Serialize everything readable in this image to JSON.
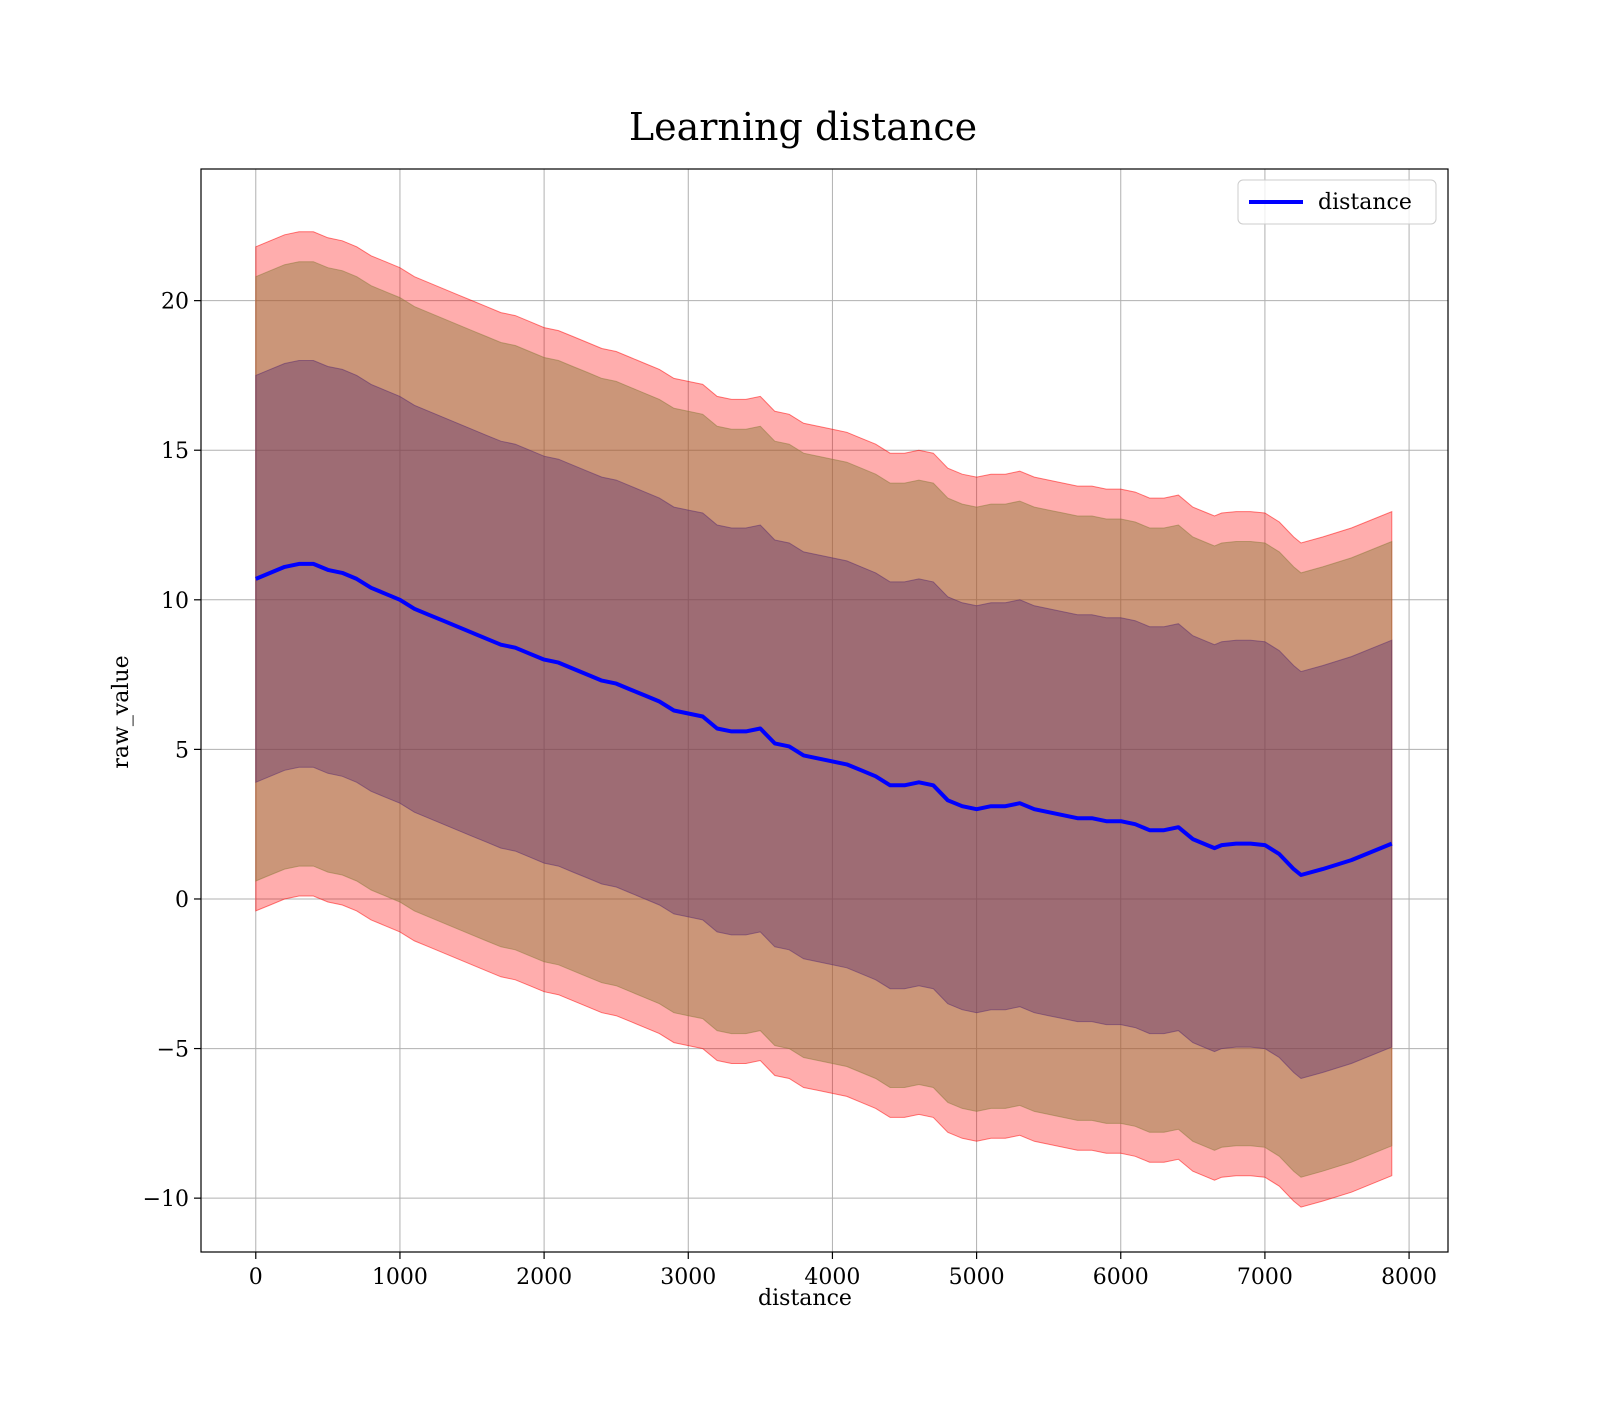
{
  "chart_data": {
    "type": "line",
    "title": "Learning distance",
    "xlabel": "distance",
    "ylabel": "raw_value",
    "xlim": [
      -380,
      8270
    ],
    "ylim": [
      -11.8,
      24.4
    ],
    "xticks": [
      0,
      1000,
      2000,
      3000,
      4000,
      5000,
      6000,
      7000,
      8000
    ],
    "xtick_labels": [
      "0",
      "1000",
      "2000",
      "3000",
      "4000",
      "5000",
      "6000",
      "7000",
      "8000"
    ],
    "yticks": [
      -10,
      -5,
      0,
      5,
      10,
      15,
      20
    ],
    "ytick_labels": [
      "−10",
      "−5",
      "0",
      "5",
      "10",
      "15",
      "20"
    ],
    "grid": true,
    "legend_position": "top-right",
    "series": [
      {
        "name": "distance",
        "color": "#0000ff",
        "x": [
          0,
          100,
          200,
          300,
          400,
          500,
          600,
          700,
          800,
          900,
          1000,
          1100,
          1200,
          1300,
          1400,
          1500,
          1600,
          1700,
          1800,
          1900,
          2000,
          2100,
          2200,
          2300,
          2400,
          2500,
          2600,
          2700,
          2800,
          2900,
          3000,
          3100,
          3200,
          3300,
          3400,
          3500,
          3600,
          3700,
          3800,
          3900,
          4000,
          4100,
          4200,
          4300,
          4400,
          4500,
          4600,
          4700,
          4800,
          4900,
          5000,
          5100,
          5200,
          5300,
          5400,
          5500,
          5600,
          5700,
          5800,
          5900,
          6000,
          6100,
          6200,
          6300,
          6400,
          6500,
          6600,
          6650,
          6700,
          6800,
          6900,
          7000,
          7100,
          7200,
          7250,
          7400,
          7600,
          7880
        ],
        "y": [
          10.7,
          10.9,
          11.1,
          11.2,
          11.2,
          11.0,
          10.9,
          10.7,
          10.4,
          10.2,
          10.0,
          9.7,
          9.5,
          9.3,
          9.1,
          8.9,
          8.7,
          8.5,
          8.4,
          8.2,
          8.0,
          7.9,
          7.7,
          7.5,
          7.3,
          7.2,
          7.0,
          6.8,
          6.6,
          6.3,
          6.2,
          6.1,
          5.7,
          5.6,
          5.6,
          5.7,
          5.2,
          5.1,
          4.8,
          4.7,
          4.6,
          4.5,
          4.3,
          4.1,
          3.8,
          3.8,
          3.9,
          3.8,
          3.3,
          3.1,
          3.0,
          3.1,
          3.1,
          3.2,
          3.0,
          2.9,
          2.8,
          2.7,
          2.7,
          2.6,
          2.6,
          2.5,
          2.3,
          2.3,
          2.4,
          2.0,
          1.8,
          1.7,
          1.8,
          1.85,
          1.85,
          1.8,
          1.5,
          1.0,
          0.8,
          1.0,
          1.3,
          1.85
        ]
      }
    ],
    "bands": [
      {
        "color": "#ff0000",
        "opacity": 0.32,
        "x": [
          0,
          100,
          200,
          300,
          400,
          500,
          600,
          700,
          800,
          900,
          1000,
          1100,
          1200,
          1300,
          1400,
          1500,
          1600,
          1700,
          1800,
          1900,
          2000,
          2100,
          2200,
          2300,
          2400,
          2500,
          2600,
          2700,
          2800,
          2900,
          3000,
          3100,
          3200,
          3300,
          3400,
          3500,
          3600,
          3700,
          3800,
          3900,
          4000,
          4100,
          4200,
          4300,
          4400,
          4500,
          4600,
          4700,
          4800,
          4900,
          5000,
          5100,
          5200,
          5300,
          5400,
          5500,
          5600,
          5700,
          5800,
          5900,
          6000,
          6100,
          6200,
          6300,
          6400,
          6500,
          6600,
          6650,
          6700,
          6800,
          6900,
          7000,
          7100,
          7200,
          7250,
          7400,
          7600,
          7880
        ],
        "upper": [
          21.8,
          22.0,
          22.2,
          22.3,
          22.3,
          22.1,
          22.0,
          21.8,
          21.5,
          21.3,
          21.1,
          20.8,
          20.6,
          20.4,
          20.2,
          20.0,
          19.8,
          19.6,
          19.5,
          19.3,
          19.1,
          19.0,
          18.8,
          18.6,
          18.4,
          18.3,
          18.1,
          17.9,
          17.7,
          17.4,
          17.3,
          17.2,
          16.8,
          16.7,
          16.7,
          16.8,
          16.3,
          16.2,
          15.9,
          15.8,
          15.7,
          15.6,
          15.4,
          15.2,
          14.9,
          14.9,
          15.0,
          14.9,
          14.4,
          14.2,
          14.1,
          14.2,
          14.2,
          14.3,
          14.1,
          14.0,
          13.9,
          13.8,
          13.8,
          13.7,
          13.7,
          13.6,
          13.4,
          13.4,
          13.5,
          13.1,
          12.9,
          12.8,
          12.9,
          12.95,
          12.95,
          12.9,
          12.6,
          12.1,
          11.9,
          12.1,
          12.4,
          12.95
        ],
        "lower": [
          -0.4,
          -0.2,
          0.0,
          0.1,
          0.1,
          -0.1,
          -0.2,
          -0.4,
          -0.7,
          -0.9,
          -1.1,
          -1.4,
          -1.6,
          -1.8,
          -2.0,
          -2.2,
          -2.4,
          -2.6,
          -2.7,
          -2.9,
          -3.1,
          -3.2,
          -3.4,
          -3.6,
          -3.8,
          -3.9,
          -4.1,
          -4.3,
          -4.5,
          -4.8,
          -4.9,
          -5.0,
          -5.4,
          -5.5,
          -5.5,
          -5.4,
          -5.9,
          -6.0,
          -6.3,
          -6.4,
          -6.5,
          -6.6,
          -6.8,
          -7.0,
          -7.3,
          -7.3,
          -7.2,
          -7.3,
          -7.8,
          -8.0,
          -8.1,
          -8.0,
          -8.0,
          -7.9,
          -8.1,
          -8.2,
          -8.3,
          -8.4,
          -8.4,
          -8.5,
          -8.5,
          -8.6,
          -8.8,
          -8.8,
          -8.7,
          -9.1,
          -9.3,
          -9.4,
          -9.3,
          -9.25,
          -9.25,
          -9.3,
          -9.6,
          -10.1,
          -10.3,
          -10.1,
          -9.8,
          -9.25
        ]
      },
      {
        "color": "#8b7a3a",
        "opacity": 0.45,
        "x": [
          0,
          100,
          200,
          300,
          400,
          500,
          600,
          700,
          800,
          900,
          1000,
          1100,
          1200,
          1300,
          1400,
          1500,
          1600,
          1700,
          1800,
          1900,
          2000,
          2100,
          2200,
          2300,
          2400,
          2500,
          2600,
          2700,
          2800,
          2900,
          3000,
          3100,
          3200,
          3300,
          3400,
          3500,
          3600,
          3700,
          3800,
          3900,
          4000,
          4100,
          4200,
          4300,
          4400,
          4500,
          4600,
          4700,
          4800,
          4900,
          5000,
          5100,
          5200,
          5300,
          5400,
          5500,
          5600,
          5700,
          5800,
          5900,
          6000,
          6100,
          6200,
          6300,
          6400,
          6500,
          6600,
          6650,
          6700,
          6800,
          6900,
          7000,
          7100,
          7200,
          7250,
          7400,
          7600,
          7880
        ],
        "upper": [
          20.8,
          21.0,
          21.2,
          21.3,
          21.3,
          21.1,
          21.0,
          20.8,
          20.5,
          20.3,
          20.1,
          19.8,
          19.6,
          19.4,
          19.2,
          19.0,
          18.8,
          18.6,
          18.5,
          18.3,
          18.1,
          18.0,
          17.8,
          17.6,
          17.4,
          17.3,
          17.1,
          16.9,
          16.7,
          16.4,
          16.3,
          16.2,
          15.8,
          15.7,
          15.7,
          15.8,
          15.3,
          15.2,
          14.9,
          14.8,
          14.7,
          14.6,
          14.4,
          14.2,
          13.9,
          13.9,
          14.0,
          13.9,
          13.4,
          13.2,
          13.1,
          13.2,
          13.2,
          13.3,
          13.1,
          13.0,
          12.9,
          12.8,
          12.8,
          12.7,
          12.7,
          12.6,
          12.4,
          12.4,
          12.5,
          12.1,
          11.9,
          11.8,
          11.9,
          11.95,
          11.95,
          11.9,
          11.6,
          11.1,
          10.9,
          11.1,
          11.4,
          11.95
        ],
        "lower": [
          0.6,
          0.8,
          1.0,
          1.1,
          1.1,
          0.9,
          0.8,
          0.6,
          0.3,
          0.1,
          -0.1,
          -0.4,
          -0.6,
          -0.8,
          -1.0,
          -1.2,
          -1.4,
          -1.6,
          -1.7,
          -1.9,
          -2.1,
          -2.2,
          -2.4,
          -2.6,
          -2.8,
          -2.9,
          -3.1,
          -3.3,
          -3.5,
          -3.8,
          -3.9,
          -4.0,
          -4.4,
          -4.5,
          -4.5,
          -4.4,
          -4.9,
          -5.0,
          -5.3,
          -5.4,
          -5.5,
          -5.6,
          -5.8,
          -6.0,
          -6.3,
          -6.3,
          -6.2,
          -6.3,
          -6.8,
          -7.0,
          -7.1,
          -7.0,
          -7.0,
          -6.9,
          -7.1,
          -7.2,
          -7.3,
          -7.4,
          -7.4,
          -7.5,
          -7.5,
          -7.6,
          -7.8,
          -7.8,
          -7.7,
          -8.1,
          -8.3,
          -8.4,
          -8.3,
          -8.25,
          -8.25,
          -8.3,
          -8.6,
          -9.1,
          -9.3,
          -9.1,
          -8.8,
          -8.25
        ]
      },
      {
        "color": "#5a2c6e",
        "opacity": 0.4,
        "x": [
          0,
          100,
          200,
          300,
          400,
          500,
          600,
          700,
          800,
          900,
          1000,
          1100,
          1200,
          1300,
          1400,
          1500,
          1600,
          1700,
          1800,
          1900,
          2000,
          2100,
          2200,
          2300,
          2400,
          2500,
          2600,
          2700,
          2800,
          2900,
          3000,
          3100,
          3200,
          3300,
          3400,
          3500,
          3600,
          3700,
          3800,
          3900,
          4000,
          4100,
          4200,
          4300,
          4400,
          4500,
          4600,
          4700,
          4800,
          4900,
          5000,
          5100,
          5200,
          5300,
          5400,
          5500,
          5600,
          5700,
          5800,
          5900,
          6000,
          6100,
          6200,
          6300,
          6400,
          6500,
          6600,
          6650,
          6700,
          6800,
          6900,
          7000,
          7100,
          7200,
          7250,
          7400,
          7600,
          7880
        ],
        "upper": [
          17.5,
          17.7,
          17.9,
          18.0,
          18.0,
          17.8,
          17.7,
          17.5,
          17.2,
          17.0,
          16.8,
          16.5,
          16.3,
          16.1,
          15.9,
          15.7,
          15.5,
          15.3,
          15.2,
          15.0,
          14.8,
          14.7,
          14.5,
          14.3,
          14.1,
          14.0,
          13.8,
          13.6,
          13.4,
          13.1,
          13.0,
          12.9,
          12.5,
          12.4,
          12.4,
          12.5,
          12.0,
          11.9,
          11.6,
          11.5,
          11.4,
          11.3,
          11.1,
          10.9,
          10.6,
          10.6,
          10.7,
          10.6,
          10.1,
          9.9,
          9.8,
          9.9,
          9.9,
          10.0,
          9.8,
          9.7,
          9.6,
          9.5,
          9.5,
          9.4,
          9.4,
          9.3,
          9.1,
          9.1,
          9.2,
          8.8,
          8.6,
          8.5,
          8.6,
          8.65,
          8.65,
          8.6,
          8.3,
          7.8,
          7.6,
          7.8,
          8.1,
          8.65
        ],
        "lower": [
          3.9,
          4.1,
          4.3,
          4.4,
          4.4,
          4.2,
          4.1,
          3.9,
          3.6,
          3.4,
          3.2,
          2.9,
          2.7,
          2.5,
          2.3,
          2.1,
          1.9,
          1.7,
          1.6,
          1.4,
          1.2,
          1.1,
          0.9,
          0.7,
          0.5,
          0.4,
          0.2,
          0.0,
          -0.2,
          -0.5,
          -0.6,
          -0.7,
          -1.1,
          -1.2,
          -1.2,
          -1.1,
          -1.6,
          -1.7,
          -2.0,
          -2.1,
          -2.2,
          -2.3,
          -2.5,
          -2.7,
          -3.0,
          -3.0,
          -2.9,
          -3.0,
          -3.5,
          -3.7,
          -3.8,
          -3.7,
          -3.7,
          -3.6,
          -3.8,
          -3.9,
          -4.0,
          -4.1,
          -4.1,
          -4.2,
          -4.2,
          -4.3,
          -4.5,
          -4.5,
          -4.4,
          -4.8,
          -5.0,
          -5.1,
          -5.0,
          -4.95,
          -4.95,
          -5.0,
          -5.3,
          -5.8,
          -6.0,
          -5.8,
          -5.5,
          -4.95
        ]
      }
    ]
  }
}
